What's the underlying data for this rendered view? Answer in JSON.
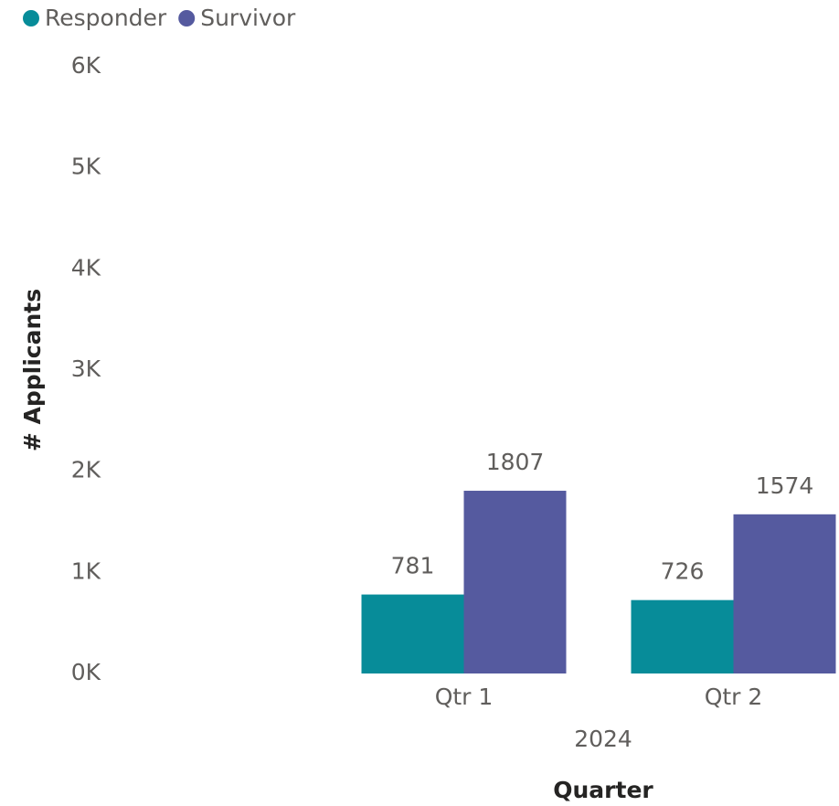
{
  "chart_data": {
    "type": "bar",
    "x_label": "Quarter",
    "y_label": "# Applicants",
    "x_group_label": "2024",
    "categories": [
      "Qtr 1",
      "Qtr 2"
    ],
    "series": [
      {
        "name": "Responder",
        "color": "#078c99",
        "values": [
          781,
          726
        ]
      },
      {
        "name": "Survivor",
        "color": "#555a9f",
        "values": [
          1807,
          1574
        ]
      }
    ],
    "ylim": [
      0,
      6000
    ],
    "yticks": [
      {
        "value": 0,
        "label": "0K"
      },
      {
        "value": 1000,
        "label": "1K"
      },
      {
        "value": 2000,
        "label": "2K"
      },
      {
        "value": 3000,
        "label": "3K"
      },
      {
        "value": 4000,
        "label": "4K"
      },
      {
        "value": 5000,
        "label": "5K"
      },
      {
        "value": 6000,
        "label": "6K"
      }
    ],
    "grid": false,
    "legend": "top-left"
  }
}
